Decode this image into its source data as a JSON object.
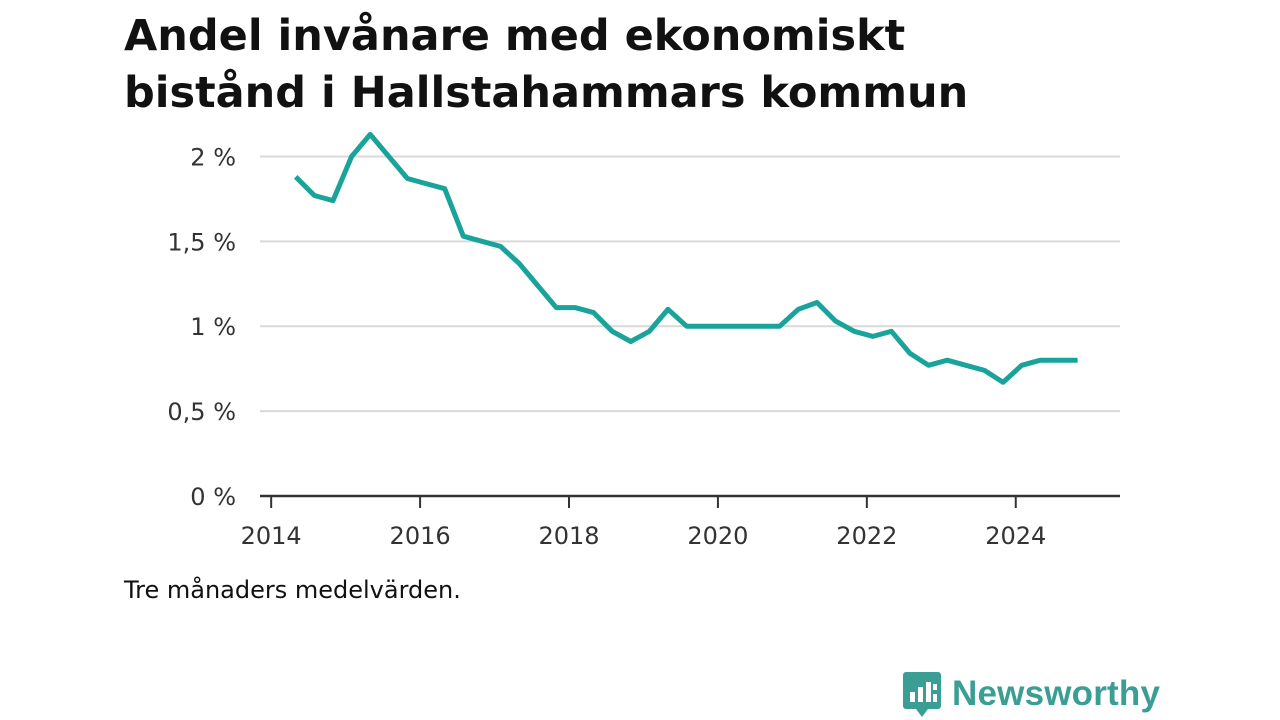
{
  "title_line1": "Andel invånare med ekonomiskt",
  "title_line2": "bistånd i Hallstahammars kommun",
  "note": "Tre månaders medelvärden.",
  "brand": {
    "name": "Newsworthy",
    "icon": "bar-chart-speech-bubble-icon"
  },
  "colors": {
    "line": "#1aa39a",
    "grid": "#d9d9d9",
    "axis": "#333333",
    "brand": "#3a9e95"
  },
  "chart_data": {
    "type": "line",
    "title": "Andel invånare med ekonomiskt bistånd i Hallstahammars kommun",
    "xlabel": "",
    "ylabel": "",
    "xlim": [
      2013.85,
      2025.4
    ],
    "ylim": [
      0,
      2.2
    ],
    "x_ticks": [
      2014,
      2016,
      2018,
      2020,
      2022,
      2024
    ],
    "y_ticks": [
      {
        "value": 0,
        "label": "0 %"
      },
      {
        "value": 0.5,
        "label": "0,5 %"
      },
      {
        "value": 1,
        "label": "1 %"
      },
      {
        "value": 1.5,
        "label": "1,5 %"
      },
      {
        "value": 2,
        "label": "2 %"
      }
    ],
    "grid": true,
    "series": [
      {
        "x": [
          2014.33,
          2014.58,
          2014.83,
          2015.08,
          2015.33,
          2015.58,
          2015.83,
          2016.08,
          2016.33,
          2016.58,
          2016.83,
          2017.08,
          2017.33,
          2017.58,
          2017.83,
          2018.08,
          2018.33,
          2018.58,
          2018.83,
          2019.08,
          2019.33,
          2019.58,
          2019.83,
          2020.08,
          2020.33,
          2020.58,
          2020.83,
          2021.08,
          2021.33,
          2021.58,
          2021.83,
          2022.08,
          2022.33,
          2022.58,
          2022.83,
          2023.08,
          2023.33,
          2023.58,
          2023.83,
          2024.08,
          2024.33,
          2024.58,
          2024.83
        ],
        "values": [
          1.88,
          1.77,
          1.74,
          2.0,
          2.13,
          2.0,
          1.87,
          1.84,
          1.81,
          1.53,
          1.5,
          1.47,
          1.37,
          1.24,
          1.11,
          1.11,
          1.08,
          0.97,
          0.91,
          0.97,
          1.1,
          1.0,
          1.0,
          1.0,
          1.0,
          1.0,
          1.0,
          1.1,
          1.14,
          1.03,
          0.97,
          0.94,
          0.97,
          0.84,
          0.77,
          0.8,
          0.77,
          0.74,
          0.67,
          0.77,
          0.8,
          0.8,
          0.8
        ]
      }
    ]
  }
}
